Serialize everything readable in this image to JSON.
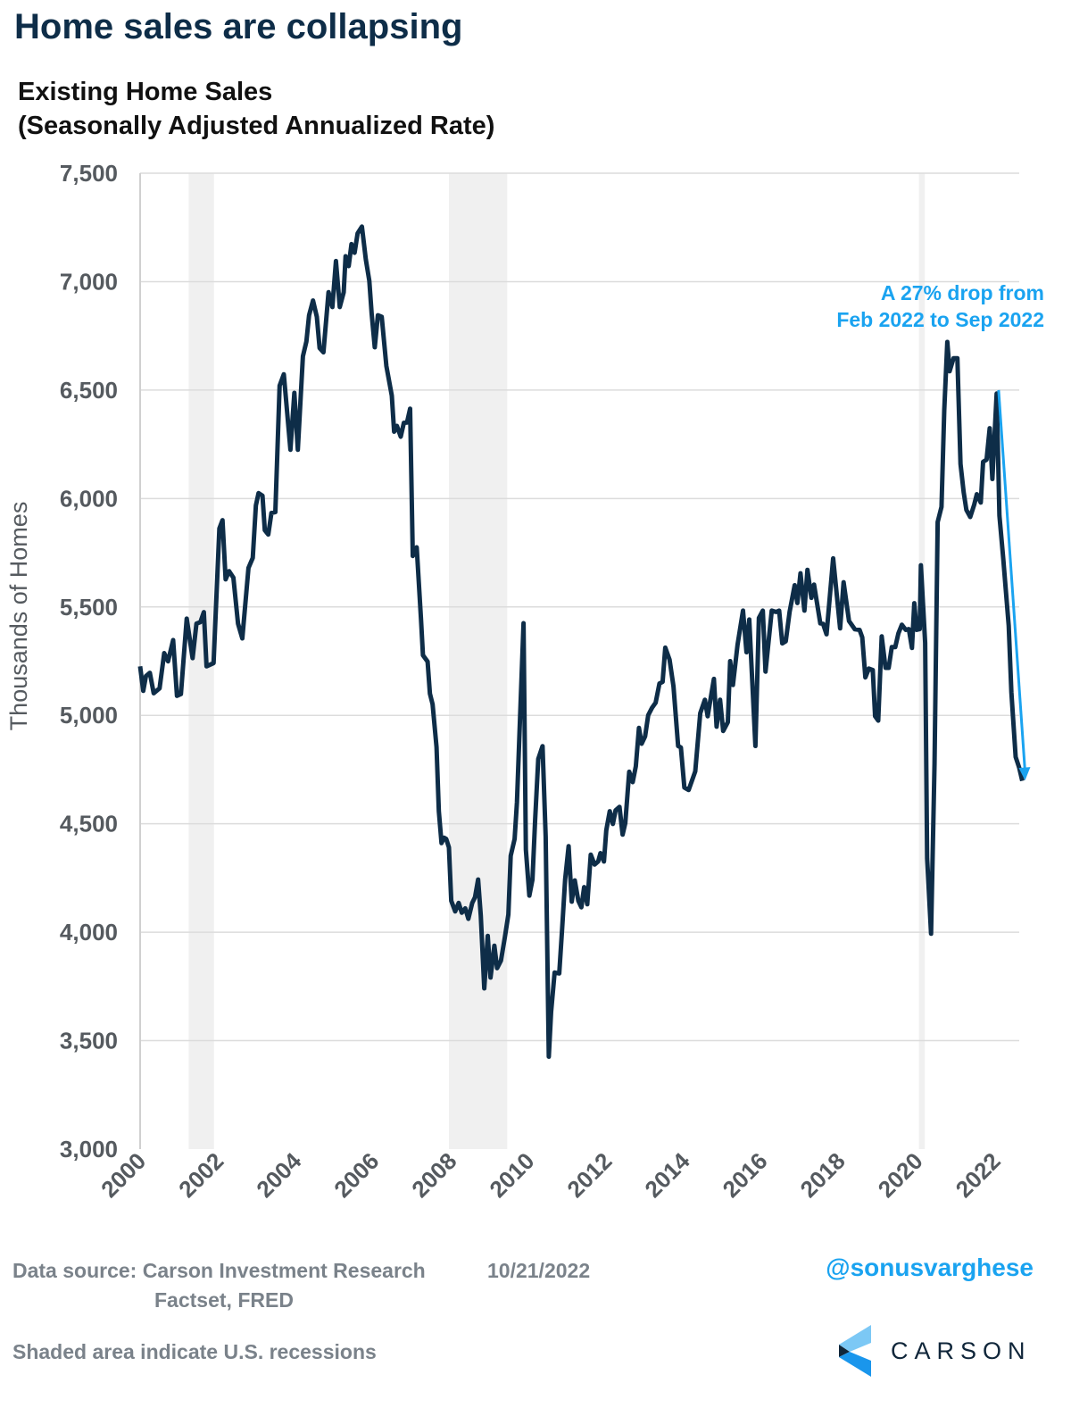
{
  "title": "Home sales are collapsing",
  "subtitle_line1": "Existing Home Sales",
  "subtitle_line2": "(Seasonally Adjusted Annualized Rate)",
  "footer": {
    "source_label": "Data source: Carson Investment Research",
    "source_line2": "Factset, FRED",
    "date": "10/21/2022",
    "note": "Shaded area indicate U.S. recessions",
    "handle": "@sonusvarghese",
    "logo_text": "CARSON"
  },
  "colors": {
    "line": "#0e2d48",
    "annotation": "#1aa3f0",
    "recession": "#f0f0f0",
    "grid": "#dcdcdc",
    "tick_text": "#555a5f"
  },
  "chart_data": {
    "type": "line",
    "title": "Existing Home Sales (Seasonally Adjusted Annualized Rate)",
    "xlabel": "",
    "ylabel": "Thousands of Homes",
    "xlim": [
      2000,
      2022.7
    ],
    "ylim": [
      3000,
      7500
    ],
    "grid": "horizontal",
    "yticks": [
      3000,
      3500,
      4000,
      4500,
      5000,
      5500,
      6000,
      6500,
      7000,
      7500
    ],
    "ytick_labels": [
      "3,000",
      "3,500",
      "4,000",
      "4,500",
      "5,000",
      "5,500",
      "6,000",
      "6,500",
      "7,000",
      "7,500"
    ],
    "xticks": [
      2000,
      2002,
      2004,
      2006,
      2008,
      2010,
      2012,
      2014,
      2016,
      2018,
      2020,
      2022
    ],
    "xtick_labels": [
      "2000",
      "2002",
      "2004",
      "2006",
      "2008",
      "2010",
      "2012",
      "2014",
      "2016",
      "2018",
      "2020",
      "2022"
    ],
    "recessions": [
      [
        2001.25,
        2001.9
      ],
      [
        2007.95,
        2009.45
      ],
      [
        2020.05,
        2020.2
      ]
    ],
    "annotation": {
      "text_line1": "A 27% drop from",
      "text_line2": "Feb 2022 to Sep 2022",
      "arrow_from": [
        2022.1,
        6500
      ],
      "arrow_to": [
        2022.78,
        4700
      ]
    },
    "series": [
      {
        "values": [
          [
            2000.0,
            5226
          ],
          [
            2000.08,
            5113
          ],
          [
            2000.15,
            5181
          ],
          [
            2000.25,
            5196
          ],
          [
            2000.35,
            5102
          ],
          [
            2000.5,
            5125
          ],
          [
            2000.62,
            5287
          ],
          [
            2000.72,
            5249
          ],
          [
            2000.85,
            5347
          ],
          [
            2000.95,
            5090
          ],
          [
            2001.05,
            5098
          ],
          [
            2001.2,
            5446
          ],
          [
            2001.35,
            5264
          ],
          [
            2001.45,
            5423
          ],
          [
            2001.55,
            5430
          ],
          [
            2001.64,
            5476
          ],
          [
            2001.71,
            5226
          ],
          [
            2001.89,
            5241
          ],
          [
            2002.04,
            5862
          ],
          [
            2002.12,
            5900
          ],
          [
            2002.2,
            5627
          ],
          [
            2002.29,
            5665
          ],
          [
            2002.4,
            5635
          ],
          [
            2002.52,
            5423
          ],
          [
            2002.63,
            5355
          ],
          [
            2002.79,
            5680
          ],
          [
            2002.9,
            5726
          ],
          [
            2002.98,
            5968
          ],
          [
            2003.05,
            6025
          ],
          [
            2003.15,
            6013
          ],
          [
            2003.21,
            5854
          ],
          [
            2003.3,
            5834
          ],
          [
            2003.38,
            5933
          ],
          [
            2003.48,
            5937
          ],
          [
            2003.59,
            6520
          ],
          [
            2003.7,
            6573
          ],
          [
            2003.87,
            6225
          ],
          [
            2003.97,
            6487
          ],
          [
            2004.06,
            6225
          ],
          [
            2004.19,
            6656
          ],
          [
            2004.28,
            6724
          ],
          [
            2004.35,
            6845
          ],
          [
            2004.45,
            6913
          ],
          [
            2004.55,
            6838
          ],
          [
            2004.62,
            6694
          ],
          [
            2004.72,
            6674
          ],
          [
            2004.85,
            6951
          ],
          [
            2004.95,
            6883
          ],
          [
            2005.04,
            7095
          ],
          [
            2005.14,
            6883
          ],
          [
            2005.24,
            6951
          ],
          [
            2005.29,
            7117
          ],
          [
            2005.37,
            7072
          ],
          [
            2005.44,
            7173
          ],
          [
            2005.52,
            7133
          ],
          [
            2005.6,
            7223
          ],
          [
            2005.71,
            7254
          ],
          [
            2005.81,
            7102
          ],
          [
            2005.9,
            7004
          ],
          [
            2005.96,
            6853
          ],
          [
            2006.04,
            6697
          ],
          [
            2006.12,
            6845
          ],
          [
            2006.22,
            6838
          ],
          [
            2006.34,
            6611
          ],
          [
            2006.48,
            6474
          ],
          [
            2006.54,
            6308
          ],
          [
            2006.61,
            6335
          ],
          [
            2006.71,
            6285
          ],
          [
            2006.79,
            6349
          ],
          [
            2006.87,
            6350
          ],
          [
            2006.95,
            6414
          ],
          [
            2007.02,
            5735
          ],
          [
            2007.12,
            5775
          ],
          [
            2007.23,
            5444
          ],
          [
            2007.28,
            5277
          ],
          [
            2007.4,
            5248
          ],
          [
            2007.46,
            5100
          ],
          [
            2007.53,
            5051
          ],
          [
            2007.63,
            4854
          ],
          [
            2007.69,
            4558
          ],
          [
            2007.76,
            4411
          ],
          [
            2007.82,
            4436
          ],
          [
            2007.88,
            4430
          ],
          [
            2007.95,
            4391
          ],
          [
            2008.01,
            4145
          ],
          [
            2008.11,
            4096
          ],
          [
            2008.2,
            4135
          ],
          [
            2008.28,
            4090
          ],
          [
            2008.37,
            4110
          ],
          [
            2008.45,
            4062
          ],
          [
            2008.55,
            4135
          ],
          [
            2008.62,
            4161
          ],
          [
            2008.7,
            4243
          ],
          [
            2008.77,
            4076
          ],
          [
            2008.86,
            3741
          ],
          [
            2008.95,
            3983
          ],
          [
            2009.02,
            3791
          ],
          [
            2009.12,
            3938
          ],
          [
            2009.19,
            3834
          ],
          [
            2009.29,
            3869
          ],
          [
            2009.39,
            3978
          ],
          [
            2009.48,
            4082
          ],
          [
            2009.54,
            4352
          ],
          [
            2009.64,
            4430
          ],
          [
            2009.7,
            4598
          ],
          [
            2009.87,
            5425
          ],
          [
            2009.93,
            4381
          ],
          [
            2010.02,
            4169
          ],
          [
            2010.1,
            4243
          ],
          [
            2010.17,
            4519
          ],
          [
            2010.25,
            4799
          ],
          [
            2010.36,
            4858
          ],
          [
            2010.44,
            4440
          ],
          [
            2010.52,
            3426
          ],
          [
            2010.58,
            3633
          ],
          [
            2010.67,
            3814
          ],
          [
            2010.79,
            3810
          ],
          [
            2010.86,
            4007
          ],
          [
            2010.94,
            4243
          ],
          [
            2011.03,
            4397
          ],
          [
            2011.11,
            4141
          ],
          [
            2011.19,
            4239
          ],
          [
            2011.28,
            4145
          ],
          [
            2011.36,
            4115
          ],
          [
            2011.43,
            4208
          ],
          [
            2011.51,
            4129
          ],
          [
            2011.6,
            4358
          ],
          [
            2011.7,
            4312
          ],
          [
            2011.79,
            4326
          ],
          [
            2011.85,
            4365
          ],
          [
            2011.94,
            4326
          ],
          [
            2012.0,
            4470
          ],
          [
            2012.09,
            4558
          ],
          [
            2012.17,
            4499
          ],
          [
            2012.24,
            4562
          ],
          [
            2012.34,
            4578
          ],
          [
            2012.42,
            4450
          ],
          [
            2012.49,
            4503
          ],
          [
            2012.59,
            4740
          ],
          [
            2012.68,
            4692
          ],
          [
            2012.76,
            4765
          ],
          [
            2012.84,
            4942
          ],
          [
            2012.91,
            4869
          ],
          [
            2013.0,
            4903
          ],
          [
            2013.08,
            5001
          ],
          [
            2013.18,
            5035
          ],
          [
            2013.27,
            5058
          ],
          [
            2013.37,
            5147
          ],
          [
            2013.45,
            5154
          ],
          [
            2013.52,
            5312
          ],
          [
            2013.63,
            5257
          ],
          [
            2013.73,
            5134
          ],
          [
            2013.85,
            4859
          ],
          [
            2013.92,
            4852
          ],
          [
            2014.01,
            4667
          ],
          [
            2014.12,
            4656
          ],
          [
            2014.29,
            4742
          ],
          [
            2014.42,
            5010
          ],
          [
            2014.54,
            5072
          ],
          [
            2014.61,
            4996
          ],
          [
            2014.77,
            5168
          ],
          [
            2014.84,
            4948
          ],
          [
            2014.93,
            5072
          ],
          [
            2015.01,
            4928
          ],
          [
            2015.13,
            4969
          ],
          [
            2015.19,
            5250
          ],
          [
            2015.26,
            5140
          ],
          [
            2015.38,
            5326
          ],
          [
            2015.52,
            5483
          ],
          [
            2015.61,
            5291
          ],
          [
            2015.68,
            5442
          ],
          [
            2015.84,
            4859
          ],
          [
            2015.93,
            5449
          ],
          [
            2016.03,
            5483
          ],
          [
            2016.1,
            5202
          ],
          [
            2016.26,
            5483
          ],
          [
            2016.37,
            5477
          ],
          [
            2016.45,
            5483
          ],
          [
            2016.53,
            5332
          ],
          [
            2016.62,
            5342
          ],
          [
            2016.72,
            5477
          ],
          [
            2016.85,
            5600
          ],
          [
            2016.92,
            5518
          ],
          [
            2017.0,
            5655
          ],
          [
            2017.1,
            5483
          ],
          [
            2017.18,
            5671
          ],
          [
            2017.28,
            5542
          ],
          [
            2017.35,
            5603
          ],
          [
            2017.51,
            5424
          ],
          [
            2017.58,
            5422
          ],
          [
            2017.67,
            5374
          ],
          [
            2017.84,
            5724
          ],
          [
            2018.02,
            5401
          ],
          [
            2018.11,
            5614
          ],
          [
            2018.25,
            5435
          ],
          [
            2018.4,
            5397
          ],
          [
            2018.52,
            5394
          ],
          [
            2018.59,
            5360
          ],
          [
            2018.67,
            5175
          ],
          [
            2018.76,
            5216
          ],
          [
            2018.86,
            5209
          ],
          [
            2018.92,
            4996
          ],
          [
            2019.0,
            4976
          ],
          [
            2019.09,
            5364
          ],
          [
            2019.19,
            5219
          ],
          [
            2019.27,
            5219
          ],
          [
            2019.35,
            5315
          ],
          [
            2019.44,
            5315
          ],
          [
            2019.52,
            5378
          ],
          [
            2019.61,
            5418
          ],
          [
            2019.71,
            5394
          ],
          [
            2019.79,
            5398
          ],
          [
            2019.87,
            5311
          ],
          [
            2019.93,
            5517
          ],
          [
            2019.99,
            5394
          ],
          [
            2020.07,
            5398
          ],
          [
            2020.1,
            5692
          ],
          [
            2020.21,
            5334
          ],
          [
            2020.26,
            4340
          ],
          [
            2020.36,
            3993
          ],
          [
            2020.45,
            4778
          ],
          [
            2020.53,
            5891
          ],
          [
            2020.63,
            5961
          ],
          [
            2020.7,
            6408
          ],
          [
            2020.78,
            6722
          ],
          [
            2020.84,
            6587
          ],
          [
            2020.94,
            6647
          ],
          [
            2021.04,
            6647
          ],
          [
            2021.12,
            6159
          ],
          [
            2021.2,
            6030
          ],
          [
            2021.27,
            5947
          ],
          [
            2021.37,
            5915
          ],
          [
            2021.47,
            5971
          ],
          [
            2021.54,
            6020
          ],
          [
            2021.64,
            5981
          ],
          [
            2021.7,
            6169
          ],
          [
            2021.79,
            6179
          ],
          [
            2021.87,
            6324
          ],
          [
            2021.94,
            6090
          ],
          [
            2022.05,
            6484
          ],
          [
            2022.12,
            5921
          ],
          [
            2022.22,
            5722
          ],
          [
            2022.36,
            5414
          ],
          [
            2022.43,
            5106
          ],
          [
            2022.54,
            4808
          ],
          [
            2022.63,
            4758
          ],
          [
            2022.71,
            4698
          ]
        ]
      }
    ]
  }
}
